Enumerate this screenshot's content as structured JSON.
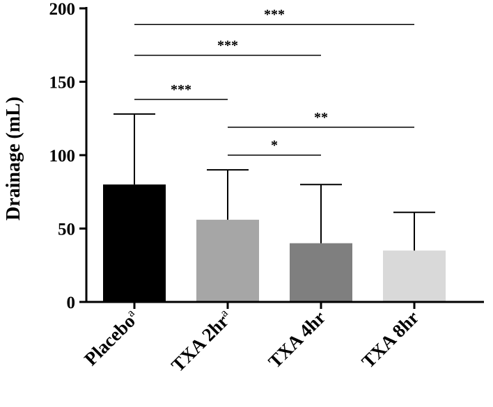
{
  "chart_data": {
    "type": "bar",
    "ylabel": "Drainage (mL)",
    "xlabel": "",
    "ylim": [
      0,
      200
    ],
    "yticks": [
      0,
      50,
      100,
      150,
      200
    ],
    "grid": false,
    "categories": [
      {
        "label": "Placebo",
        "superscript": "a"
      },
      {
        "label": "TXA 2hr",
        "superscript": "a"
      },
      {
        "label": "TXA 4hr",
        "superscript": ""
      },
      {
        "label": "TXA 8hr",
        "superscript": ""
      }
    ],
    "values": [
      80,
      56,
      40,
      35
    ],
    "error_upper": [
      128,
      90,
      80,
      61
    ],
    "colors": [
      "#000000",
      "#a6a6a6",
      "#7f7f7f",
      "#d9d9d9"
    ],
    "significance": [
      {
        "from": 0,
        "to": 3,
        "label": "***",
        "y": 189
      },
      {
        "from": 0,
        "to": 2,
        "label": "***",
        "y": 168
      },
      {
        "from": 0,
        "to": 1,
        "label": "***",
        "y": 138
      },
      {
        "from": 1,
        "to": 3,
        "label": "**",
        "y": 119
      },
      {
        "from": 1,
        "to": 2,
        "label": "*",
        "y": 100
      }
    ]
  }
}
